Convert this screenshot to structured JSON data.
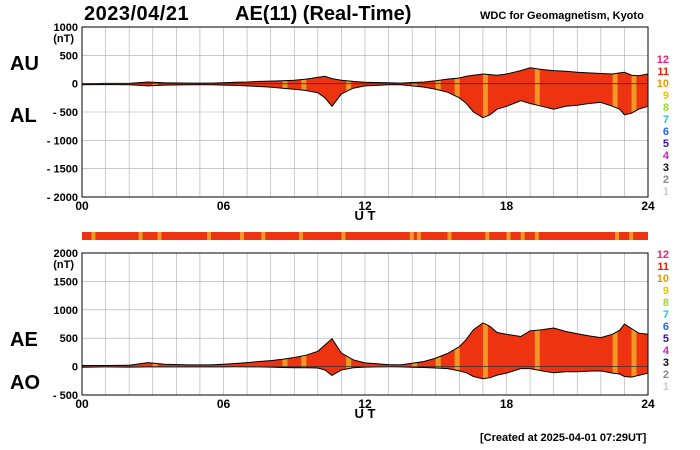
{
  "header": {
    "date": "2023/04/21",
    "title": "AE(11) (Real-Time)",
    "credit": "WDC for Geomagnetism, Kyoto",
    "created": "[Created at 2025-04-01 07:29UT]"
  },
  "colors": {
    "fill_main": "#ee3311",
    "fill_partial": "#ee9922",
    "outline": "#000000",
    "grid": "#aaaaaa"
  },
  "station_legend": {
    "labels": [
      "12",
      "11",
      "10",
      "9",
      "8",
      "7",
      "6",
      "5",
      "4",
      "3",
      "2",
      "1"
    ],
    "colors": [
      "#ee2277",
      "#ee2200",
      "#ee9900",
      "#ddcc00",
      "#99dd22",
      "#22cccc",
      "#2266ee",
      "#3311aa",
      "#cc22cc",
      "#111111",
      "#888888",
      "#cccccc"
    ]
  },
  "chart_data": [
    {
      "type": "area",
      "name": "AU-AL",
      "ylabels_left": [
        "AU",
        "AL"
      ],
      "units": "(nT)",
      "xlabel": "U T",
      "x_ticks": [
        "00",
        "06",
        "12",
        "18",
        "24"
      ],
      "ylim": [
        -2000,
        1000
      ],
      "y_ticks": [
        1000,
        500,
        0,
        -500,
        -1000,
        -1500,
        -2000
      ],
      "y_tick_labels": [
        "1000",
        "500",
        "0",
        "- 500",
        "- 1000",
        "- 1500",
        "- 2000"
      ],
      "x_hours": [
        0,
        1,
        2,
        2.8,
        3.5,
        4.5,
        5.5,
        6,
        6.5,
        7,
        7.5,
        8,
        8.5,
        9,
        9.5,
        10,
        10.3,
        10.6,
        11,
        11.5,
        12,
        12.5,
        13,
        13.5,
        14,
        14.5,
        15,
        15.5,
        16,
        16.3,
        16.6,
        17,
        17.3,
        17.6,
        18,
        18.3,
        18.6,
        19,
        19.5,
        20,
        20.5,
        21,
        21.5,
        22,
        22.5,
        22.8,
        23,
        23.3,
        23.6,
        24
      ],
      "series": [
        {
          "name": "AU",
          "values": [
            0,
            5,
            5,
            30,
            15,
            10,
            10,
            15,
            25,
            30,
            40,
            45,
            50,
            60,
            80,
            110,
            130,
            90,
            60,
            40,
            25,
            20,
            15,
            10,
            20,
            30,
            50,
            80,
            100,
            130,
            150,
            170,
            160,
            150,
            170,
            200,
            230,
            280,
            250,
            230,
            220,
            200,
            190,
            180,
            170,
            190,
            200,
            150,
            140,
            170
          ]
        },
        {
          "name": "AL",
          "values": [
            -20,
            -15,
            -20,
            -40,
            -25,
            -20,
            -20,
            -25,
            -30,
            -40,
            -50,
            -60,
            -80,
            -100,
            -120,
            -160,
            -250,
            -400,
            -180,
            -80,
            -40,
            -30,
            -20,
            -20,
            -40,
            -60,
            -100,
            -150,
            -250,
            -350,
            -500,
            -600,
            -550,
            -450,
            -400,
            -350,
            -300,
            -350,
            -400,
            -450,
            -400,
            -380,
            -350,
            -330,
            -400,
            -450,
            -550,
            -520,
            -450,
            -400
          ]
        }
      ],
      "partial_coverage_hours": [
        3,
        8.5,
        9.3,
        11.2,
        14,
        15,
        15.8,
        17,
        19.2,
        22.5,
        23.3
      ],
      "station_count_top": "12"
    },
    {
      "type": "area",
      "name": "AE-AO",
      "ylabels_left": [
        "AE",
        "AO"
      ],
      "units": "(nT)",
      "xlabel": "U T",
      "x_ticks": [
        "00",
        "06",
        "12",
        "18",
        "24"
      ],
      "ylim": [
        -500,
        2000
      ],
      "y_ticks": [
        2000,
        1500,
        1000,
        500,
        0,
        -500
      ],
      "y_tick_labels": [
        "2000",
        "1500",
        "1000",
        "500",
        "0",
        "- 500"
      ],
      "x_hours": [
        0,
        1,
        2,
        2.8,
        3.5,
        4.5,
        5.5,
        6,
        6.5,
        7,
        7.5,
        8,
        8.5,
        9,
        9.5,
        10,
        10.3,
        10.6,
        11,
        11.5,
        12,
        12.5,
        13,
        13.5,
        14,
        14.5,
        15,
        15.5,
        16,
        16.3,
        16.6,
        17,
        17.3,
        17.6,
        18,
        18.3,
        18.6,
        19,
        19.5,
        20,
        20.5,
        21,
        21.5,
        22,
        22.5,
        22.8,
        23,
        23.3,
        23.6,
        24
      ],
      "series": [
        {
          "name": "AE",
          "values": [
            20,
            20,
            25,
            70,
            40,
            30,
            30,
            40,
            55,
            70,
            90,
            105,
            130,
            160,
            200,
            270,
            380,
            490,
            240,
            120,
            65,
            50,
            35,
            30,
            60,
            90,
            150,
            230,
            350,
            480,
            650,
            770,
            710,
            600,
            570,
            550,
            530,
            630,
            650,
            680,
            620,
            580,
            540,
            510,
            570,
            640,
            750,
            670,
            590,
            570
          ]
        },
        {
          "name": "AO",
          "values": [
            -10,
            -5,
            -8,
            -5,
            -5,
            -5,
            -5,
            -5,
            -3,
            -5,
            -5,
            -8,
            -15,
            -20,
            -20,
            -25,
            -60,
            -155,
            -60,
            -20,
            -8,
            -5,
            -3,
            -5,
            -10,
            -15,
            -25,
            -35,
            -75,
            -110,
            -175,
            -215,
            -195,
            -150,
            -115,
            -75,
            -35,
            -35,
            -75,
            -110,
            -90,
            -90,
            -80,
            -75,
            -115,
            -130,
            -175,
            -185,
            -155,
            -115
          ]
        }
      ],
      "partial_coverage_hours": [
        3,
        8.5,
        9.3,
        11.2,
        14,
        15,
        15.8,
        17,
        19.2,
        22.5,
        23.3
      ]
    }
  ],
  "coverage_bar": {
    "partial_hours": [
      0.4,
      2.4,
      3.2,
      5.3,
      6.7,
      7.6,
      9.2,
      11.0,
      13.9,
      14.2,
      15.5,
      17.1,
      18.0,
      18.6,
      19.2,
      22.6,
      23.2
    ]
  }
}
